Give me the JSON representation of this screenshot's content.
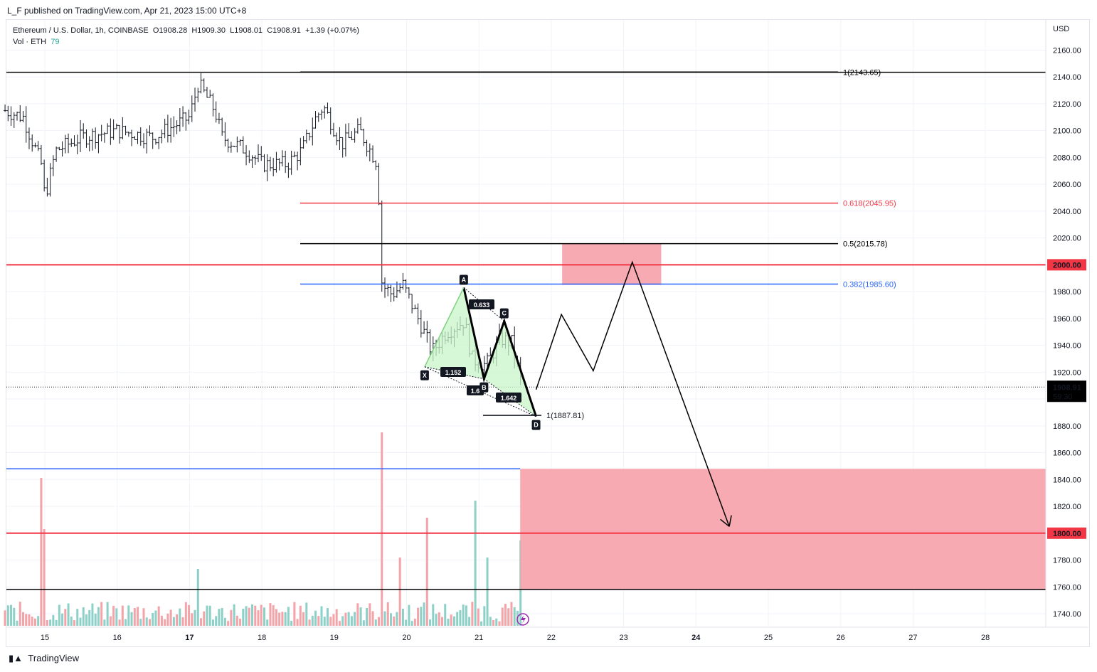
{
  "publisher": "L_F published on TradingView.com, Apr 21, 2023 15:00 UTC+8",
  "legend": {
    "symbol": "Ethereum / U.S. Dollar, 1h, COINBASE",
    "open": "O1908.28",
    "high": "H1909.30",
    "low": "L1908.01",
    "close": "C1908.91",
    "change": "+1.39 (+0.07%)",
    "vol_label": "Vol · ETH",
    "vol_value": "79"
  },
  "footer": {
    "brand": "TradingView",
    "logo": "tv-logo-icon"
  },
  "chart_data": {
    "type": "candlestick",
    "currency": "USD",
    "ylim": [
      1730,
      2170
    ],
    "y_ticks": [
      "1740.00",
      "1760.00",
      "1780.00",
      "1800.00",
      "1820.00",
      "1840.00",
      "1860.00",
      "1880.00",
      "1900.00",
      "1920.00",
      "1940.00",
      "1960.00",
      "1980.00",
      "2000.00",
      "2020.00",
      "2040.00",
      "2060.00",
      "2080.00",
      "2100.00",
      "2120.00",
      "2140.00",
      "2160.00"
    ],
    "x_ticks": [
      "15",
      "16",
      "17",
      "18",
      "19",
      "20",
      "21",
      "22",
      "23",
      "24",
      "25",
      "26",
      "27",
      "28"
    ],
    "last_price": "1908.91",
    "countdown": "59:30",
    "price_labels": [
      {
        "text": "2000.00",
        "value": 2000,
        "color": "#f23645"
      },
      {
        "text": "1800.00",
        "value": 1800,
        "color": "#f23645"
      }
    ],
    "horizontal_lines": [
      {
        "value": 2143.5,
        "color": "#000000"
      },
      {
        "value": 2000,
        "color": "#f23645"
      },
      {
        "value": 1848,
        "color": "#2962ff"
      },
      {
        "value": 1800,
        "color": "#f23645"
      },
      {
        "value": 1758,
        "color": "#000000"
      }
    ],
    "fib_levels": [
      {
        "text": "1(2143.65)",
        "value": 2143.65,
        "color": "#000000"
      },
      {
        "text": "0.618(2045.95)",
        "value": 2045.95,
        "color": "#f23645"
      },
      {
        "text": "0.5(2015.78)",
        "value": 2015.78,
        "color": "#000000"
      },
      {
        "text": "0.382(1985.60)",
        "value": 1985.6,
        "color": "#2962ff"
      }
    ],
    "target_label": "1(1887.81)",
    "target_value": 1887.81,
    "harmonic_points": [
      {
        "label": "X",
        "day": 20.25,
        "value": 1924
      },
      {
        "label": "A",
        "day": 20.79,
        "value": 1983
      },
      {
        "label": "B",
        "day": 21.07,
        "value": 1915
      },
      {
        "label": "C",
        "day": 21.35,
        "value": 1958
      },
      {
        "label": "D",
        "day": 21.79,
        "value": 1887
      }
    ],
    "ratios": [
      "0.633",
      "1.152",
      "1.642",
      "1.6"
    ],
    "projection": [
      {
        "day": 21.79,
        "value": 1907
      },
      {
        "day": 22.14,
        "value": 1963
      },
      {
        "day": 22.58,
        "value": 1921
      },
      {
        "day": 23.12,
        "value": 2002
      },
      {
        "day": 24.46,
        "value": 1805
      }
    ],
    "zones": [
      {
        "day_start": 22.15,
        "day_end": 23.52,
        "top": 2016,
        "bottom": 1985
      },
      {
        "day_start": 21.57,
        "day_end": 28.9,
        "top": 1848,
        "bottom": 1758
      }
    ],
    "volume_peak_values": [
      130,
      85,
      170,
      60,
      95,
      110,
      60,
      50,
      75
    ],
    "volume_peak_days": [
      14.96,
      15.0,
      19.66,
      19.92,
      20.3,
      20.97,
      21.1,
      17.13,
      21.58
    ]
  }
}
